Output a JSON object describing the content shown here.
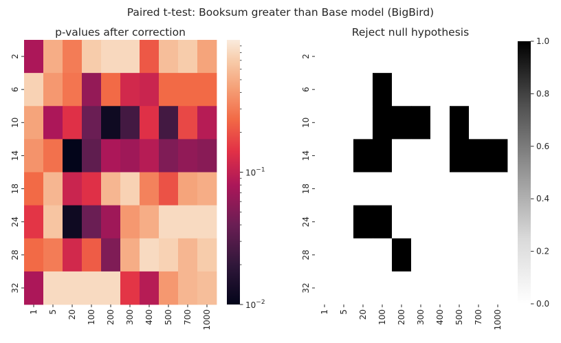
{
  "figure": {
    "suptitle": "Paired t-test: Booksum greater than Base model (BigBird)"
  },
  "chart_data": [
    {
      "type": "heatmap",
      "title": "p-values after correction",
      "xlabel": "",
      "ylabel": "",
      "x_categories": [
        "1",
        "5",
        "20",
        "100",
        "200",
        "300",
        "400",
        "500",
        "700",
        "1000"
      ],
      "y_categories": [
        "2",
        "6",
        "10",
        "14",
        "18",
        "24",
        "28",
        "32"
      ],
      "colormap": "rocket",
      "color_scale": "log",
      "vlim": [
        0.01,
        1
      ],
      "colorbar": {
        "tick_values": [
          0.01,
          0.1
        ],
        "tick_labels": [
          {
            "mantissa": "10",
            "exponent": "−2"
          },
          {
            "mantissa": "10",
            "exponent": "−1"
          }
        ]
      },
      "values": [
        [
          0.08,
          0.5,
          0.3,
          0.7,
          0.8,
          0.8,
          0.21,
          0.6,
          0.7,
          0.45
        ],
        [
          0.75,
          0.4,
          0.28,
          0.062,
          0.25,
          0.12,
          0.11,
          0.25,
          0.25,
          0.25
        ],
        [
          0.45,
          0.08,
          0.14,
          0.04,
          0.012,
          0.025,
          0.14,
          0.025,
          0.18,
          0.09
        ],
        [
          0.38,
          0.27,
          0.01,
          0.035,
          0.08,
          0.07,
          0.09,
          0.05,
          0.06,
          0.055
        ],
        [
          0.25,
          0.55,
          0.11,
          0.14,
          0.55,
          0.75,
          0.32,
          0.2,
          0.45,
          0.5
        ],
        [
          0.15,
          0.65,
          0.012,
          0.04,
          0.07,
          0.4,
          0.5,
          0.82,
          0.82,
          0.82
        ],
        [
          0.25,
          0.3,
          0.12,
          0.22,
          0.05,
          0.5,
          0.82,
          0.75,
          0.55,
          0.7
        ],
        [
          0.08,
          0.82,
          0.82,
          0.82,
          0.82,
          0.15,
          0.09,
          0.4,
          0.55,
          0.6
        ]
      ]
    },
    {
      "type": "heatmap",
      "title": "Reject null hypothesis",
      "xlabel": "",
      "ylabel": "",
      "x_categories": [
        "1",
        "5",
        "20",
        "100",
        "200",
        "300",
        "400",
        "500",
        "700",
        "1000"
      ],
      "y_categories": [
        "2",
        "6",
        "10",
        "14",
        "18",
        "24",
        "28",
        "32"
      ],
      "colormap": "Greys",
      "color_scale": "linear",
      "vlim": [
        0,
        1
      ],
      "colorbar": {
        "tick_values": [
          0,
          0.2,
          0.4,
          0.6,
          0.8,
          1
        ],
        "tick_labels": [
          "0.0",
          "0.2",
          "0.4",
          "0.6",
          "0.8",
          "1.0"
        ]
      },
      "values": [
        [
          0,
          0,
          0,
          0,
          0,
          0,
          0,
          0,
          0,
          0
        ],
        [
          0,
          0,
          0,
          1,
          0,
          0,
          0,
          0,
          0,
          0
        ],
        [
          0,
          0,
          0,
          1,
          1,
          1,
          0,
          1,
          0,
          0
        ],
        [
          0,
          0,
          1,
          1,
          0,
          0,
          0,
          1,
          1,
          1
        ],
        [
          0,
          0,
          0,
          0,
          0,
          0,
          0,
          0,
          0,
          0
        ],
        [
          0,
          0,
          1,
          1,
          0,
          0,
          0,
          0,
          0,
          0
        ],
        [
          0,
          0,
          0,
          0,
          1,
          0,
          0,
          0,
          0,
          0
        ],
        [
          0,
          0,
          0,
          0,
          0,
          0,
          0,
          0,
          0,
          0
        ]
      ]
    }
  ]
}
